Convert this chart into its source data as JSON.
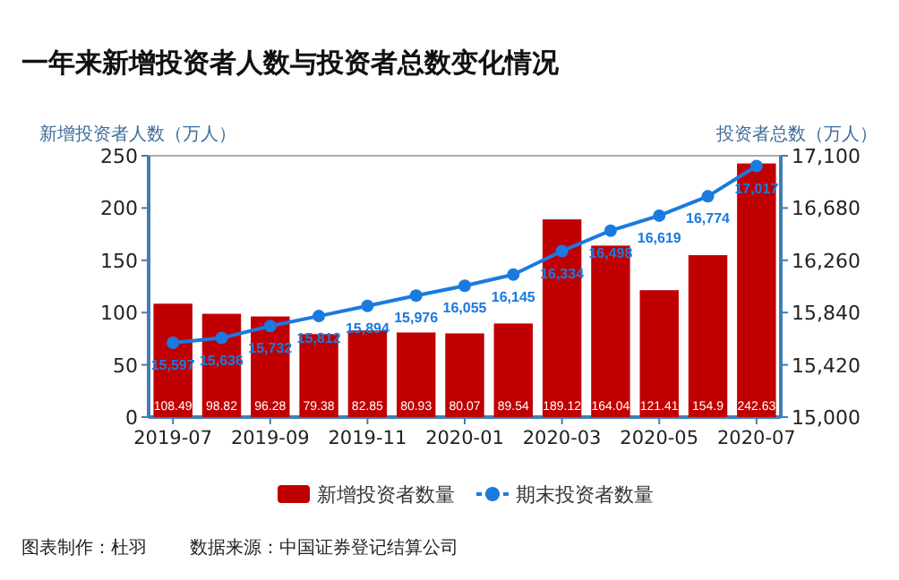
{
  "chart_data": {
    "type": "bar",
    "title": "一年来新增投资者人数与投资者总数变化情况",
    "ylabel": "新增投资者人数（万人）",
    "y2label": "投资者总数（万人）",
    "categories": [
      "2019-07",
      null,
      "2019-09",
      null,
      "2019-11",
      null,
      "2020-01",
      null,
      "2020-03",
      null,
      "2020-05",
      null,
      "2020-07"
    ],
    "series": [
      {
        "name": "新增投资者数量",
        "color": "#c00000",
        "values": [
          108.49,
          98.82,
          96.28,
          79.38,
          82.85,
          80.93,
          80.07,
          89.54,
          189.12,
          164.04,
          121.41,
          154.9,
          242.63
        ],
        "value_labels": [
          "108.49",
          "98.82",
          "96.28",
          "79.38",
          "82.85",
          "80.93",
          "80.07",
          "89.54",
          "189.12",
          "164.04",
          "121.41",
          "154.9",
          "242.63"
        ]
      },
      {
        "name": "期末投资者数量",
        "type": "line",
        "axis": "y2",
        "color": "#1a7ae0",
        "values": [
          15597,
          15636,
          15732,
          15812,
          15894,
          15976,
          16055,
          16145,
          16334,
          16498,
          16619,
          16774,
          17017
        ],
        "value_labels": [
          "15,597",
          "15,636",
          "15,732",
          "15,812",
          "15,894",
          "15,976",
          "16,055",
          "16,145",
          "16,334",
          "16,498",
          "16,619",
          "16,774",
          "17,017"
        ]
      }
    ],
    "ylim": [
      0,
      250
    ],
    "yticks": [
      0,
      50,
      100,
      150,
      200,
      250
    ],
    "y2lim": [
      15000,
      17100
    ],
    "y2ticks": [
      {
        "value": 15000,
        "label": "15,000"
      },
      {
        "value": 15420,
        "label": "15,420"
      },
      {
        "value": 15840,
        "label": "15,840"
      },
      {
        "value": 16260,
        "label": "16,260"
      },
      {
        "value": 16680,
        "label": "16,680"
      },
      {
        "value": 17100,
        "label": "17,100"
      }
    ],
    "marker": "circle",
    "legend": "bottom",
    "annotations": [
      "图表制作：杜羽",
      "数据来源：中国证券登记结算公司"
    ]
  }
}
